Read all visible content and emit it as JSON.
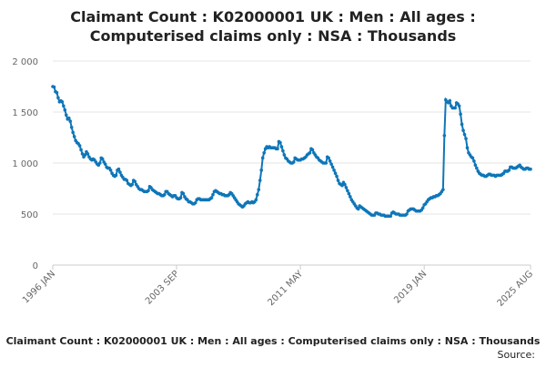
{
  "chart_data": {
    "type": "line",
    "title": [
      "Claimant Count : K02000001 UK : Men : All ages :",
      "Computerised claims only : NSA : Thousands"
    ],
    "caption": "Claimant Count : K02000001 UK : Men : All ages : Computerised claims only : NSA : Thousands",
    "source": "Source:",
    "categories": [
      "1996 JAN",
      null,
      null,
      null,
      null,
      null,
      null,
      null,
      null,
      null,
      null,
      null,
      null,
      null,
      null,
      null,
      null,
      null,
      null,
      null,
      null,
      null,
      null,
      null,
      null,
      null,
      null,
      null,
      null,
      null,
      null,
      null,
      null,
      null,
      null,
      null,
      null,
      null,
      null,
      null,
      null,
      null,
      null,
      null,
      null,
      null,
      null,
      null,
      null,
      null,
      null,
      null,
      null,
      null,
      null,
      null,
      null,
      null,
      null,
      null,
      null,
      null,
      null,
      null,
      null,
      null,
      null,
      null,
      null,
      null,
      null,
      null,
      null,
      null,
      null,
      null,
      null,
      null,
      null,
      null,
      null,
      null,
      null,
      null,
      null,
      null,
      null,
      null,
      null,
      null,
      null,
      null,
      "2003 SEP",
      null,
      null,
      null,
      null,
      null,
      null,
      null,
      null,
      null,
      null,
      null,
      null,
      null,
      null,
      null,
      null,
      null,
      null,
      null,
      null,
      null,
      null,
      null,
      null,
      null,
      null,
      null,
      null,
      null,
      null,
      null,
      null,
      null,
      null,
      null,
      null,
      null,
      null,
      null,
      null,
      null,
      null,
      null,
      null,
      null,
      null,
      null,
      null,
      null,
      null,
      null,
      null,
      null,
      null,
      null,
      null,
      null,
      null,
      null,
      null,
      null,
      null,
      null,
      null,
      null,
      null,
      null,
      null,
      null,
      null,
      null,
      null,
      null,
      null,
      null,
      null,
      null,
      null,
      null,
      null,
      null,
      null,
      null,
      null,
      null,
      null,
      null,
      null,
      null,
      null,
      null,
      "2011 MAY",
      null,
      null,
      null,
      null,
      null,
      null,
      null,
      null,
      null,
      null,
      null,
      null,
      null,
      null,
      null,
      null,
      null,
      null,
      null,
      null,
      null,
      null,
      null,
      null,
      null,
      null,
      null,
      null,
      null,
      null,
      null,
      null,
      null,
      null,
      null,
      null,
      null,
      null,
      null,
      null,
      null,
      null,
      null,
      null,
      null,
      null,
      null,
      null,
      null,
      null,
      null,
      null,
      null,
      null,
      null,
      null,
      null,
      null,
      null,
      null,
      null,
      null,
      null,
      null,
      null,
      null,
      null,
      null,
      null,
      null,
      null,
      null,
      null,
      null,
      null,
      null,
      null,
      null,
      null,
      null,
      null,
      null,
      null,
      null,
      null,
      null,
      null,
      null,
      null,
      null,
      null,
      "2019 JAN",
      null,
      null,
      null,
      null,
      null,
      null,
      null,
      null,
      null,
      null,
      null,
      null,
      null,
      null,
      null,
      null,
      null,
      null,
      null,
      null,
      null,
      null,
      null,
      null,
      null,
      null,
      null,
      null,
      null,
      null,
      null,
      null,
      null,
      null,
      null,
      null,
      null,
      null,
      null,
      null,
      null,
      null,
      null,
      null,
      null,
      null,
      null,
      null,
      null,
      null,
      null,
      null,
      null,
      null,
      null,
      null,
      null,
      null,
      null,
      null,
      null,
      null,
      null,
      null,
      null,
      null,
      null,
      null,
      null,
      null,
      null,
      null,
      null,
      null,
      null,
      null,
      null,
      null,
      "2025 AUG"
    ],
    "series": [
      {
        "name": "Claimant Count",
        "color": "#0f76b8",
        "values": [
          1750,
          1745,
          1700,
          1690,
          1640,
          1600,
          1610,
          1600,
          1560,
          1520,
          1470,
          1430,
          1440,
          1410,
          1350,
          1300,
          1260,
          1220,
          1200,
          1190,
          1170,
          1130,
          1090,
          1060,
          1080,
          1110,
          1090,
          1060,
          1040,
          1030,
          1040,
          1030,
          1010,
          990,
          980,
          1000,
          1050,
          1040,
          1010,
          990,
          960,
          950,
          950,
          930,
          900,
          880,
          870,
          880,
          930,
          940,
          910,
          880,
          860,
          840,
          840,
          830,
          800,
          790,
          780,
          790,
          830,
          820,
          790,
          770,
          750,
          740,
          740,
          730,
          720,
          720,
          720,
          730,
          770,
          760,
          740,
          730,
          720,
          710,
          700,
          700,
          690,
          680,
          680,
          690,
          720,
          720,
          700,
          690,
          680,
          670,
          680,
          680,
          660,
          650,
          650,
          660,
          710,
          700,
          670,
          650,
          640,
          620,
          620,
          610,
          600,
          600,
          610,
          640,
          650,
          650,
          640,
          640,
          640,
          640,
          640,
          640,
          640,
          650,
          660,
          690,
          720,
          730,
          720,
          710,
          700,
          700,
          690,
          690,
          680,
          680,
          680,
          690,
          710,
          700,
          680,
          660,
          640,
          620,
          600,
          590,
          580,
          570,
          580,
          600,
          610,
          620,
          610,
          610,
          620,
          610,
          620,
          640,
          690,
          740,
          830,
          930,
          1050,
          1100,
          1140,
          1160,
          1150,
          1160,
          1150,
          1150,
          1150,
          1150,
          1140,
          1140,
          1210,
          1200,
          1160,
          1120,
          1080,
          1050,
          1040,
          1020,
          1010,
          1000,
          1000,
          1010,
          1050,
          1040,
          1030,
          1030,
          1030,
          1040,
          1040,
          1050,
          1060,
          1080,
          1090,
          1100,
          1140,
          1130,
          1100,
          1080,
          1060,
          1050,
          1030,
          1020,
          1010,
          1000,
          1000,
          1000,
          1060,
          1050,
          1020,
          990,
          960,
          930,
          900,
          870,
          830,
          800,
          790,
          780,
          810,
          790,
          760,
          730,
          700,
          670,
          640,
          620,
          600,
          580,
          560,
          550,
          580,
          570,
          560,
          550,
          540,
          530,
          520,
          510,
          500,
          490,
          490,
          490,
          510,
          510,
          500,
          500,
          490,
          490,
          490,
          480,
          480,
          480,
          480,
          480,
          510,
          520,
          510,
          500,
          500,
          500,
          490,
          490,
          490,
          490,
          490,
          500,
          530,
          540,
          550,
          550,
          550,
          540,
          530,
          530,
          530,
          530,
          540,
          560,
          590,
          600,
          620,
          640,
          650,
          660,
          660,
          670,
          670,
          680,
          680,
          690,
          700,
          720,
          740,
          1270,
          1620,
          1600,
          1590,
          1610,
          1560,
          1540,
          1540,
          1540,
          1590,
          1580,
          1560,
          1480,
          1380,
          1320,
          1280,
          1240,
          1150,
          1100,
          1080,
          1060,
          1050,
          1020,
          980,
          950,
          920,
          900,
          890,
          880,
          880,
          870,
          870,
          880,
          890,
          890,
          880,
          880,
          880,
          870,
          880,
          880,
          880,
          880,
          890,
          900,
          920,
          920,
          920,
          930,
          960,
          960,
          950,
          950,
          950,
          960,
          970,
          980,
          960,
          950,
          940,
          940,
          950,
          950,
          940,
          940
        ]
      }
    ],
    "ylim": [
      0,
      2000
    ],
    "yticks": [
      0,
      500,
      {
        "value": 1000,
        "label": "1 000"
      },
      {
        "value": 1500,
        "label": "1 500"
      },
      {
        "value": 2000,
        "label": "2 000"
      }
    ],
    "grid": true
  }
}
